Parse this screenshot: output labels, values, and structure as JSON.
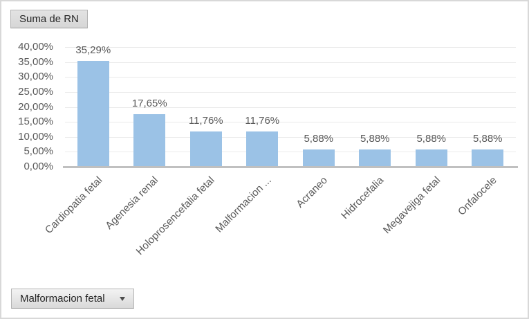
{
  "pivot": {
    "value_field_button": "Suma de RN",
    "filter_field_button": "Malformacion fetal"
  },
  "chart_data": {
    "type": "bar",
    "title": "",
    "categories": [
      "Cardiopatia fetal",
      "Agenesia renal",
      "Holoprosencefalia fetal",
      "Malformacion ...",
      "Acraneo",
      "Hidrocefalia",
      "Megavejiga fetal",
      "Onfalocele"
    ],
    "values": [
      35.29,
      17.65,
      11.76,
      11.76,
      5.88,
      5.88,
      5.88,
      5.88
    ],
    "data_labels": [
      "35,29%",
      "17,65%",
      "11,76%",
      "11,76%",
      "5,88%",
      "5,88%",
      "5,88%",
      "5,88%"
    ],
    "xlabel": "",
    "ylabel": "",
    "y_axis": {
      "min": 0,
      "max": 40,
      "step": 5,
      "tick_labels": [
        "0,00%",
        "5,00%",
        "10,00%",
        "15,00%",
        "20,00%",
        "25,00%",
        "30,00%",
        "35,00%",
        "40,00%"
      ]
    },
    "grid": true,
    "legend": "none",
    "colors": {
      "bar": "#9bc2e6",
      "axis_line": "#c0c0c0",
      "gridline": "#eaeaea",
      "tick_text": "#595959",
      "label_text": "#595959"
    }
  }
}
